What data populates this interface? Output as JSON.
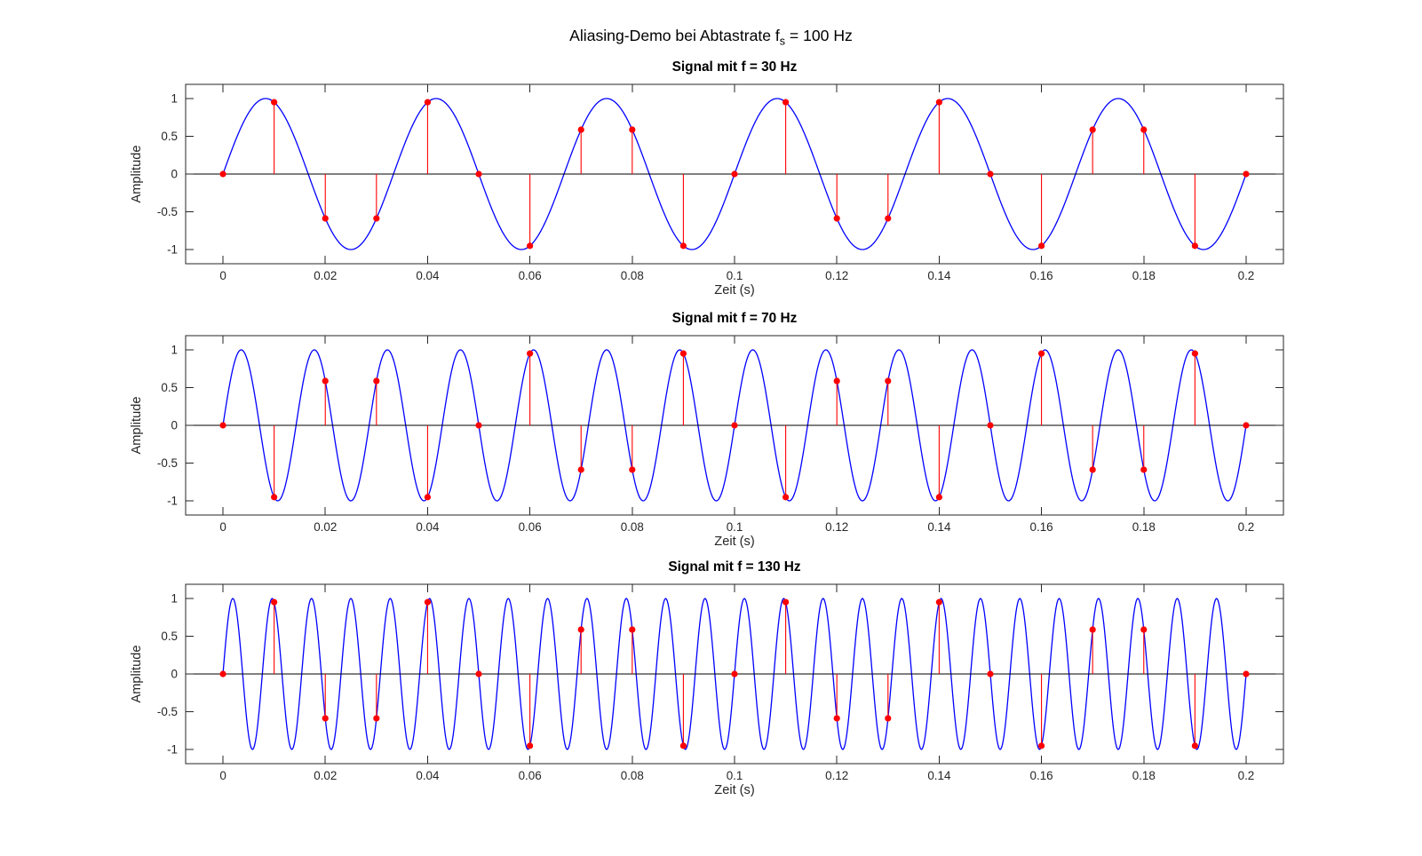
{
  "figure": {
    "title_pre": "Aliasing-Demo bei Abtastrate f",
    "title_sub": "s",
    "title_post": " = 100 Hz"
  },
  "colors": {
    "curve": "#0000ff",
    "stem": "#ff0000",
    "marker": "#ff0000",
    "baseline": "#000000",
    "axis": "#262626",
    "background": "#ffffff"
  },
  "chart_data": [
    {
      "type": "line+stem",
      "title": "Signal mit f = 30 Hz",
      "xlabel": "Zeit (s)",
      "ylabel": "Amplitude",
      "signal_frequency_hz": 30,
      "sampling_rate_hz": 100,
      "xlim": [
        -0.0073,
        0.2073
      ],
      "ylim": [
        -1.188,
        1.188
      ],
      "curve_t_range": [
        0,
        0.2
      ],
      "xticks": [
        0,
        0.02,
        0.04,
        0.06,
        0.08,
        0.1,
        0.12,
        0.14,
        0.16,
        0.18,
        0.2
      ],
      "xtick_labels": [
        "0",
        "0.02",
        "0.04",
        "0.06",
        "0.08",
        "0.1",
        "0.12",
        "0.14",
        "0.16",
        "0.18",
        "0.2"
      ],
      "yticks": [
        -1,
        -0.5,
        0,
        0.5,
        1
      ],
      "ytick_labels": [
        "-1",
        "-0.5",
        "0",
        "0.5",
        "1"
      ],
      "grid": false,
      "legend": null,
      "samples": {
        "t": [
          0,
          0.01,
          0.02,
          0.03,
          0.04,
          0.05,
          0.06,
          0.07,
          0.08,
          0.09,
          0.1,
          0.11,
          0.12,
          0.13,
          0.14,
          0.15,
          0.16,
          0.17,
          0.18,
          0.19,
          0.2
        ],
        "y": [
          0,
          0.9511,
          -0.5878,
          -0.5878,
          0.9511,
          0,
          -0.9511,
          0.5878,
          0.5878,
          -0.9511,
          0,
          0.9511,
          -0.5878,
          -0.5878,
          0.9511,
          0,
          -0.9511,
          0.5878,
          0.5878,
          -0.9511,
          0
        ]
      }
    },
    {
      "type": "line+stem",
      "title": "Signal mit f = 70 Hz",
      "xlabel": "Zeit (s)",
      "ylabel": "Amplitude",
      "signal_frequency_hz": 70,
      "sampling_rate_hz": 100,
      "xlim": [
        -0.0073,
        0.2073
      ],
      "ylim": [
        -1.188,
        1.188
      ],
      "curve_t_range": [
        0,
        0.2
      ],
      "xticks": [
        0,
        0.02,
        0.04,
        0.06,
        0.08,
        0.1,
        0.12,
        0.14,
        0.16,
        0.18,
        0.2
      ],
      "xtick_labels": [
        "0",
        "0.02",
        "0.04",
        "0.06",
        "0.08",
        "0.1",
        "0.12",
        "0.14",
        "0.16",
        "0.18",
        "0.2"
      ],
      "yticks": [
        -1,
        -0.5,
        0,
        0.5,
        1
      ],
      "ytick_labels": [
        "-1",
        "-0.5",
        "0",
        "0.5",
        "1"
      ],
      "grid": false,
      "legend": null,
      "samples": {
        "t": [
          0,
          0.01,
          0.02,
          0.03,
          0.04,
          0.05,
          0.06,
          0.07,
          0.08,
          0.09,
          0.1,
          0.11,
          0.12,
          0.13,
          0.14,
          0.15,
          0.16,
          0.17,
          0.18,
          0.19,
          0.2
        ],
        "y": [
          0,
          -0.9511,
          0.5878,
          0.5878,
          -0.9511,
          0,
          0.9511,
          -0.5878,
          -0.5878,
          0.9511,
          0,
          -0.9511,
          0.5878,
          0.5878,
          -0.9511,
          0,
          0.9511,
          -0.5878,
          -0.5878,
          0.9511,
          0
        ]
      }
    },
    {
      "type": "line+stem",
      "title": "Signal mit f = 130 Hz",
      "xlabel": "Zeit (s)",
      "ylabel": "Amplitude",
      "signal_frequency_hz": 130,
      "sampling_rate_hz": 100,
      "xlim": [
        -0.0073,
        0.2073
      ],
      "ylim": [
        -1.188,
        1.188
      ],
      "curve_t_range": [
        0,
        0.2
      ],
      "xticks": [
        0,
        0.02,
        0.04,
        0.06,
        0.08,
        0.1,
        0.12,
        0.14,
        0.16,
        0.18,
        0.2
      ],
      "xtick_labels": [
        "0",
        "0.02",
        "0.04",
        "0.06",
        "0.08",
        "0.1",
        "0.12",
        "0.14",
        "0.16",
        "0.18",
        "0.2"
      ],
      "yticks": [
        -1,
        -0.5,
        0,
        0.5,
        1
      ],
      "ytick_labels": [
        "-1",
        "-0.5",
        "0",
        "0.5",
        "1"
      ],
      "grid": false,
      "legend": null,
      "samples": {
        "t": [
          0,
          0.01,
          0.02,
          0.03,
          0.04,
          0.05,
          0.06,
          0.07,
          0.08,
          0.09,
          0.1,
          0.11,
          0.12,
          0.13,
          0.14,
          0.15,
          0.16,
          0.17,
          0.18,
          0.19,
          0.2
        ],
        "y": [
          0,
          0.9511,
          -0.5878,
          -0.5878,
          0.9511,
          0,
          -0.9511,
          0.5878,
          0.5878,
          -0.9511,
          0,
          0.9511,
          -0.5878,
          -0.5878,
          0.9511,
          0,
          -0.9511,
          0.5878,
          0.5878,
          -0.9511,
          0
        ]
      }
    }
  ]
}
